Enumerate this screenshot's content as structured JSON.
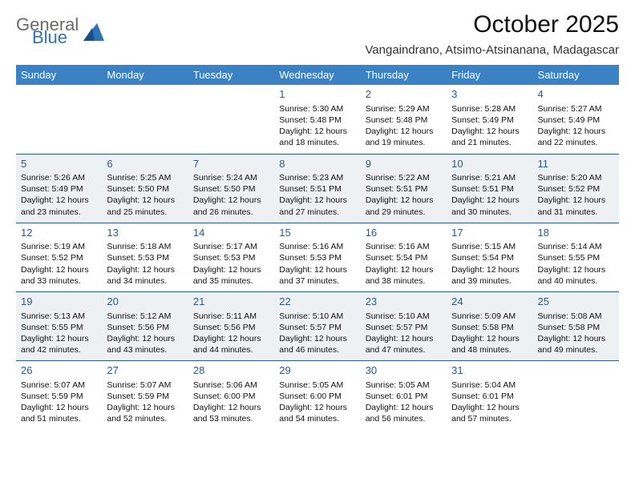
{
  "brand": {
    "line1": "General",
    "line2": "Blue",
    "text_color": "#6a6a6a",
    "accent_color": "#2f74b5"
  },
  "title": "October 2025",
  "location": "Vangaindrano, Atsimo-Atsinanana, Madagascar",
  "colors": {
    "header_bg": "#3a82c4",
    "header_text": "#ffffff",
    "row_alt_bg": "#eef1f4",
    "row_bg": "#ffffff",
    "divider": "#2a5a8a",
    "daynum": "#2a5a8a"
  },
  "day_headers": [
    "Sunday",
    "Monday",
    "Tuesday",
    "Wednesday",
    "Thursday",
    "Friday",
    "Saturday"
  ],
  "weeks": [
    [
      null,
      null,
      null,
      {
        "n": "1",
        "sr": "5:30 AM",
        "ss": "5:48 PM",
        "dl": "12 hours and 18 minutes."
      },
      {
        "n": "2",
        "sr": "5:29 AM",
        "ss": "5:48 PM",
        "dl": "12 hours and 19 minutes."
      },
      {
        "n": "3",
        "sr": "5:28 AM",
        "ss": "5:49 PM",
        "dl": "12 hours and 21 minutes."
      },
      {
        "n": "4",
        "sr": "5:27 AM",
        "ss": "5:49 PM",
        "dl": "12 hours and 22 minutes."
      }
    ],
    [
      {
        "n": "5",
        "sr": "5:26 AM",
        "ss": "5:49 PM",
        "dl": "12 hours and 23 minutes."
      },
      {
        "n": "6",
        "sr": "5:25 AM",
        "ss": "5:50 PM",
        "dl": "12 hours and 25 minutes."
      },
      {
        "n": "7",
        "sr": "5:24 AM",
        "ss": "5:50 PM",
        "dl": "12 hours and 26 minutes."
      },
      {
        "n": "8",
        "sr": "5:23 AM",
        "ss": "5:51 PM",
        "dl": "12 hours and 27 minutes."
      },
      {
        "n": "9",
        "sr": "5:22 AM",
        "ss": "5:51 PM",
        "dl": "12 hours and 29 minutes."
      },
      {
        "n": "10",
        "sr": "5:21 AM",
        "ss": "5:51 PM",
        "dl": "12 hours and 30 minutes."
      },
      {
        "n": "11",
        "sr": "5:20 AM",
        "ss": "5:52 PM",
        "dl": "12 hours and 31 minutes."
      }
    ],
    [
      {
        "n": "12",
        "sr": "5:19 AM",
        "ss": "5:52 PM",
        "dl": "12 hours and 33 minutes."
      },
      {
        "n": "13",
        "sr": "5:18 AM",
        "ss": "5:53 PM",
        "dl": "12 hours and 34 minutes."
      },
      {
        "n": "14",
        "sr": "5:17 AM",
        "ss": "5:53 PM",
        "dl": "12 hours and 35 minutes."
      },
      {
        "n": "15",
        "sr": "5:16 AM",
        "ss": "5:53 PM",
        "dl": "12 hours and 37 minutes."
      },
      {
        "n": "16",
        "sr": "5:16 AM",
        "ss": "5:54 PM",
        "dl": "12 hours and 38 minutes."
      },
      {
        "n": "17",
        "sr": "5:15 AM",
        "ss": "5:54 PM",
        "dl": "12 hours and 39 minutes."
      },
      {
        "n": "18",
        "sr": "5:14 AM",
        "ss": "5:55 PM",
        "dl": "12 hours and 40 minutes."
      }
    ],
    [
      {
        "n": "19",
        "sr": "5:13 AM",
        "ss": "5:55 PM",
        "dl": "12 hours and 42 minutes."
      },
      {
        "n": "20",
        "sr": "5:12 AM",
        "ss": "5:56 PM",
        "dl": "12 hours and 43 minutes."
      },
      {
        "n": "21",
        "sr": "5:11 AM",
        "ss": "5:56 PM",
        "dl": "12 hours and 44 minutes."
      },
      {
        "n": "22",
        "sr": "5:10 AM",
        "ss": "5:57 PM",
        "dl": "12 hours and 46 minutes."
      },
      {
        "n": "23",
        "sr": "5:10 AM",
        "ss": "5:57 PM",
        "dl": "12 hours and 47 minutes."
      },
      {
        "n": "24",
        "sr": "5:09 AM",
        "ss": "5:58 PM",
        "dl": "12 hours and 48 minutes."
      },
      {
        "n": "25",
        "sr": "5:08 AM",
        "ss": "5:58 PM",
        "dl": "12 hours and 49 minutes."
      }
    ],
    [
      {
        "n": "26",
        "sr": "5:07 AM",
        "ss": "5:59 PM",
        "dl": "12 hours and 51 minutes."
      },
      {
        "n": "27",
        "sr": "5:07 AM",
        "ss": "5:59 PM",
        "dl": "12 hours and 52 minutes."
      },
      {
        "n": "28",
        "sr": "5:06 AM",
        "ss": "6:00 PM",
        "dl": "12 hours and 53 minutes."
      },
      {
        "n": "29",
        "sr": "5:05 AM",
        "ss": "6:00 PM",
        "dl": "12 hours and 54 minutes."
      },
      {
        "n": "30",
        "sr": "5:05 AM",
        "ss": "6:01 PM",
        "dl": "12 hours and 56 minutes."
      },
      {
        "n": "31",
        "sr": "5:04 AM",
        "ss": "6:01 PM",
        "dl": "12 hours and 57 minutes."
      },
      null
    ]
  ],
  "labels": {
    "sunrise": "Sunrise:",
    "sunset": "Sunset:",
    "daylight": "Daylight:"
  }
}
